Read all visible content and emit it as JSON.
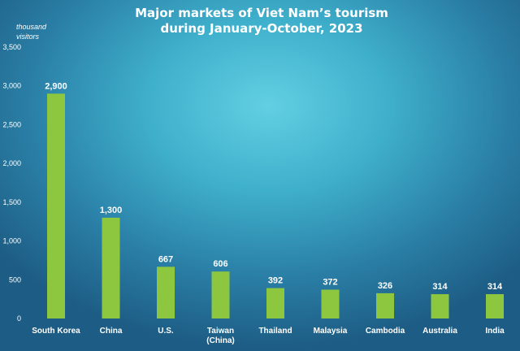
{
  "chart_data": {
    "type": "bar",
    "title": "Major markets of Viet Nam’s tourism",
    "title_line2": "during January-October, 2023",
    "ylabel_line1": "thousand",
    "ylabel_line2": "visitors",
    "ylim": [
      0,
      3500
    ],
    "yticks": [
      "0",
      "500",
      "1,000",
      "1,500",
      "2,000",
      "2,500",
      "3,000",
      "3,500"
    ],
    "categories": [
      [
        "South Korea"
      ],
      [
        "China"
      ],
      [
        "U.S."
      ],
      [
        "Taiwan",
        "(China)"
      ],
      [
        "Thailand"
      ],
      [
        "Malaysia"
      ],
      [
        "Cambodia"
      ],
      [
        "Australia"
      ],
      [
        "India"
      ]
    ],
    "values": [
      2900,
      1300,
      667,
      606,
      392,
      372,
      326,
      314,
      314
    ],
    "data_labels": [
      "2,900",
      "1,300",
      "667",
      "606",
      "392",
      "372",
      "326",
      "314",
      "314"
    ],
    "bar_color": "#8dc63f",
    "text_color": "#ffffff",
    "grid": false
  }
}
